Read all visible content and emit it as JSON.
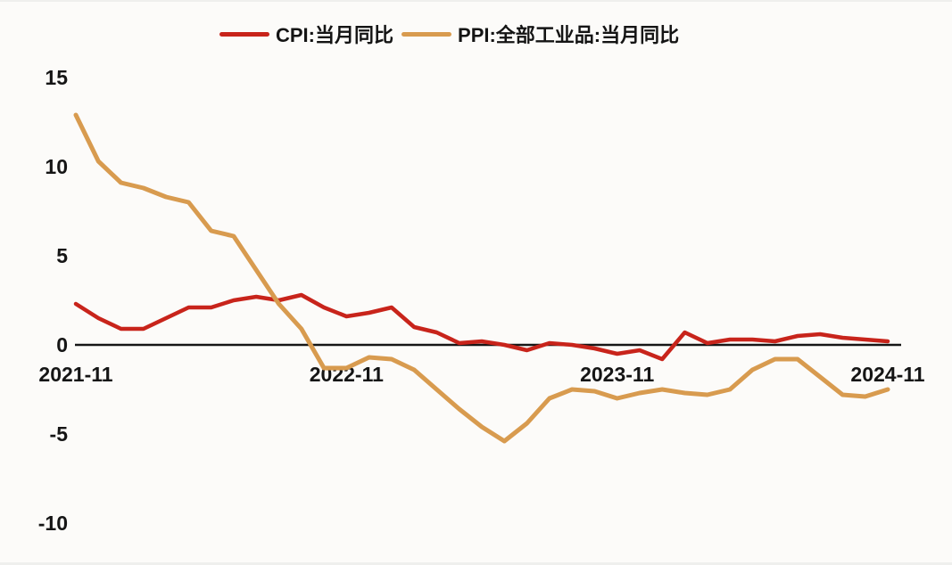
{
  "chart_data": {
    "type": "line",
    "title": "",
    "x": [
      "2021-11",
      "2021-12",
      "2022-01",
      "2022-02",
      "2022-03",
      "2022-04",
      "2022-05",
      "2022-06",
      "2022-07",
      "2022-08",
      "2022-09",
      "2022-10",
      "2022-11",
      "2022-12",
      "2023-01",
      "2023-02",
      "2023-03",
      "2023-04",
      "2023-05",
      "2023-06",
      "2023-07",
      "2023-08",
      "2023-09",
      "2023-10",
      "2023-11",
      "2023-12",
      "2024-01",
      "2024-02",
      "2024-03",
      "2024-04",
      "2024-05",
      "2024-06",
      "2024-07",
      "2024-08",
      "2024-09",
      "2024-10",
      "2024-11"
    ],
    "series": [
      {
        "id": "cpi",
        "name": "CPI:当月同比",
        "color": "#c8241b",
        "values": [
          2.3,
          1.5,
          0.9,
          0.9,
          1.5,
          2.1,
          2.1,
          2.5,
          2.7,
          2.5,
          2.8,
          2.1,
          1.6,
          1.8,
          2.1,
          1.0,
          0.7,
          0.1,
          0.2,
          0.0,
          -0.3,
          0.1,
          0.0,
          -0.2,
          -0.5,
          -0.3,
          -0.8,
          0.7,
          0.1,
          0.3,
          0.3,
          0.2,
          0.5,
          0.6,
          0.4,
          0.3,
          0.2
        ]
      },
      {
        "id": "ppi",
        "name": "PPI:全部工业品:当月同比",
        "color": "#d89b4f",
        "values": [
          12.9,
          10.3,
          9.1,
          8.8,
          8.3,
          8.0,
          6.4,
          6.1,
          4.2,
          2.3,
          0.9,
          -1.3,
          -1.3,
          -0.7,
          -0.8,
          -1.4,
          -2.5,
          -3.6,
          -4.6,
          -5.4,
          -4.4,
          -3.0,
          -2.5,
          -2.6,
          -3.0,
          -2.7,
          -2.5,
          -2.7,
          -2.8,
          -2.5,
          -1.4,
          -0.8,
          -0.8,
          -1.8,
          -2.8,
          -2.9,
          -2.5
        ]
      }
    ],
    "xlabel": "",
    "ylabel": "",
    "yticks": [
      15,
      10,
      5,
      0,
      -5,
      -10
    ],
    "ylim": [
      -12.5,
      15.4
    ],
    "xtick_labels": [
      "2021-11",
      "2022-11",
      "2023-11",
      "2024-11"
    ],
    "grid": false,
    "zero_line": true,
    "axis_color": "#161616",
    "legend_position": "top",
    "background": "#fcfbf9"
  }
}
